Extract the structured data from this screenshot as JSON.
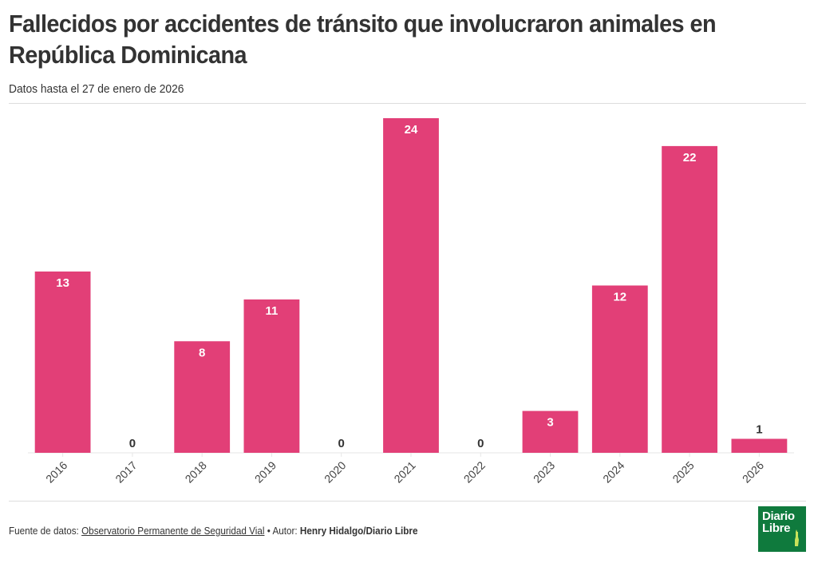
{
  "header": {
    "title": "Fallecidos por accidentes de tránsito que involucraron animales en República Dominicana",
    "subtitle": "Datos hasta el 27 de enero de 2026"
  },
  "footer": {
    "source_prefix": "Fuente de datos:",
    "source_link": "Observatorio Permanente de Seguridad Vial",
    "separator": "•",
    "author_prefix": "Autor:",
    "author": "Henry Hidalgo/Diario Libre"
  },
  "logo": {
    "line1": "Diario",
    "line2": "Libre",
    "background": "#0f7a3d"
  },
  "colors": {
    "bar": "#e23f77",
    "label_inside": "#ffffff",
    "label_outside": "#333333",
    "axis": "#e6e6e6"
  },
  "chart_data": {
    "type": "bar",
    "title": "Fallecidos por accidentes de tránsito que involucraron animales en República Dominicana",
    "subtitle": "Datos hasta el 27 de enero de 2026",
    "xlabel": "",
    "ylabel": "",
    "categories": [
      "2016",
      "2017",
      "2018",
      "2019",
      "2020",
      "2021",
      "2022",
      "2023",
      "2024",
      "2025",
      "2026"
    ],
    "values": [
      13,
      0,
      8,
      11,
      0,
      24,
      0,
      3,
      12,
      22,
      1
    ],
    "ylim": [
      0,
      24
    ],
    "grid": false,
    "legend": "none",
    "data_labels": true,
    "tick_label_rotation": -45
  }
}
